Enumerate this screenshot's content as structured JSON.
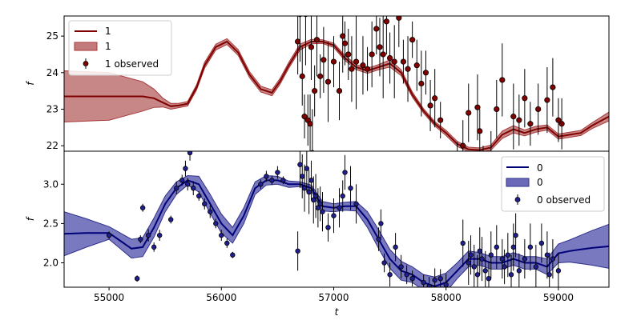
{
  "chart_data": [
    {
      "type": "line",
      "panel": "top",
      "xlim": [
        54600,
        59450
      ],
      "ylim": [
        21.85,
        25.55
      ],
      "yticks": [
        22,
        23,
        24,
        25
      ],
      "ylabel": "f",
      "xlabel": "",
      "grid": false,
      "legend_position": "top-left",
      "colors": {
        "line": "#800000",
        "band": "#c27a7a",
        "band_edge": "#a83a3a",
        "point": "#800000"
      },
      "legend": [
        "1",
        "1",
        "1 observed"
      ],
      "model": {
        "x": [
          54600,
          55000,
          55300,
          55400,
          55480,
          55550,
          55620,
          55700,
          55780,
          55850,
          55950,
          56050,
          56150,
          56250,
          56350,
          56450,
          56520,
          56600,
          56700,
          56800,
          56900,
          57000,
          57100,
          57200,
          57300,
          57400,
          57500,
          57600,
          57700,
          57800,
          57900,
          58000,
          58100,
          58200,
          58300,
          58400,
          58500,
          58600,
          58700,
          58800,
          58900,
          59000,
          59100,
          59200,
          59300,
          59450
        ],
        "y": [
          23.35,
          23.35,
          23.35,
          23.3,
          23.18,
          23.08,
          23.1,
          23.15,
          23.6,
          24.2,
          24.7,
          24.85,
          24.55,
          23.95,
          23.55,
          23.45,
          23.75,
          24.2,
          24.7,
          24.85,
          24.85,
          24.75,
          24.4,
          24.15,
          24.05,
          24.15,
          24.25,
          24.0,
          23.4,
          22.95,
          22.6,
          22.35,
          22.05,
          21.9,
          21.88,
          21.95,
          22.3,
          22.45,
          22.35,
          22.45,
          22.5,
          22.25,
          22.3,
          22.35,
          22.55,
          22.8
        ],
        "band_halfwidth": [
          0.7,
          0.65,
          0.4,
          0.25,
          0.12,
          0.08,
          0.06,
          0.06,
          0.07,
          0.08,
          0.08,
          0.08,
          0.08,
          0.08,
          0.08,
          0.08,
          0.08,
          0.08,
          0.08,
          0.06,
          0.05,
          0.06,
          0.07,
          0.07,
          0.07,
          0.07,
          0.1,
          0.08,
          0.07,
          0.06,
          0.06,
          0.07,
          0.07,
          0.06,
          0.06,
          0.07,
          0.1,
          0.1,
          0.08,
          0.08,
          0.07,
          0.07,
          0.07,
          0.07,
          0.08,
          0.12
        ]
      },
      "observed": {
        "name": "1 observed",
        "x": [
          56680,
          56700,
          56720,
          56740,
          56750,
          56770,
          56790,
          56800,
          56810,
          56830,
          56850,
          56880,
          56910,
          56950,
          57000,
          57050,
          57080,
          57100,
          57130,
          57160,
          57200,
          57260,
          57300,
          57340,
          57380,
          57410,
          57440,
          57470,
          57500,
          57540,
          57580,
          57620,
          57660,
          57700,
          57740,
          57780,
          57820,
          57860,
          57900,
          57950,
          58100,
          58150,
          58200,
          58280,
          58300,
          58330,
          58400,
          58450,
          58500,
          58550,
          58600,
          58650,
          58700,
          58750,
          58820,
          58900,
          58950,
          59000,
          59030
        ],
        "y": [
          24.85,
          25.6,
          23.9,
          22.8,
          25.6,
          22.7,
          22.6,
          24.7,
          21.8,
          23.5,
          24.9,
          23.9,
          24.35,
          23.75,
          24.3,
          23.5,
          25.0,
          24.8,
          24.5,
          24.1,
          24.3,
          24.2,
          24.1,
          24.5,
          25.2,
          24.7,
          24.5,
          25.4,
          24.4,
          24.3,
          25.5,
          24.3,
          24.1,
          24.9,
          24.2,
          23.7,
          24.0,
          23.1,
          23.3,
          22.7,
          21.5,
          22.0,
          22.9,
          23.05,
          22.4,
          21.5,
          21.7,
          23.0,
          23.8,
          21.2,
          22.8,
          22.7,
          23.3,
          22.6,
          23.0,
          23.25,
          23.6,
          22.7,
          22.6
        ],
        "yerr": [
          0.9,
          1.3,
          0.8,
          0.6,
          1.4,
          0.7,
          0.8,
          0.9,
          1.2,
          0.7,
          1.0,
          0.6,
          0.9,
          1.1,
          0.7,
          0.8,
          1.0,
          0.6,
          0.7,
          0.9,
          1.3,
          0.8,
          0.6,
          0.9,
          0.7,
          0.8,
          1.2,
          0.9,
          0.7,
          1.0,
          0.8,
          0.6,
          0.9,
          0.5,
          0.7,
          0.9,
          0.6,
          0.7,
          0.8,
          0.5,
          0.6,
          0.7,
          0.8,
          0.9,
          0.6,
          0.5,
          0.7,
          0.8,
          1.0,
          0.6,
          0.9,
          0.7,
          0.8,
          0.6,
          0.7,
          0.9,
          0.8,
          0.6,
          0.7
        ]
      }
    },
    {
      "type": "line",
      "panel": "bottom",
      "xlim": [
        54600,
        59450
      ],
      "ylim": [
        1.69,
        3.42
      ],
      "yticks": [
        2.0,
        2.5,
        3.0
      ],
      "xticks": [
        55000,
        56000,
        57000,
        58000,
        59000
      ],
      "xlabel": "t",
      "ylabel": "f",
      "grid": false,
      "legend_position": "top-right",
      "colors": {
        "line": "#00007a",
        "band": "#6a6ab8",
        "band_edge": "#30308c",
        "point": "#1f1f8f"
      },
      "legend": [
        "0",
        "0",
        "0 observed"
      ],
      "model": {
        "x": [
          54600,
          54800,
          55000,
          55100,
          55200,
          55300,
          55400,
          55500,
          55600,
          55700,
          55800,
          55900,
          56000,
          56100,
          56200,
          56300,
          56400,
          56500,
          56600,
          56700,
          56800,
          56900,
          57000,
          57100,
          57200,
          57300,
          57400,
          57500,
          57600,
          57700,
          57800,
          57900,
          58000,
          58100,
          58200,
          58300,
          58400,
          58500,
          58600,
          58700,
          58800,
          58900,
          59000,
          59100,
          59200,
          59300,
          59450
        ],
        "y": [
          2.37,
          2.38,
          2.38,
          2.28,
          2.18,
          2.2,
          2.45,
          2.75,
          2.95,
          3.05,
          3.0,
          2.75,
          2.5,
          2.35,
          2.6,
          2.95,
          3.05,
          3.05,
          3.0,
          3.0,
          2.95,
          2.72,
          2.7,
          2.72,
          2.72,
          2.55,
          2.3,
          2.05,
          1.9,
          1.85,
          1.75,
          1.7,
          1.75,
          1.9,
          2.05,
          2.05,
          2.0,
          2.0,
          2.05,
          2.0,
          2.0,
          1.95,
          2.12,
          2.15,
          2.17,
          2.19,
          2.21
        ],
        "band_halfwidth": [
          0.28,
          0.18,
          0.08,
          0.1,
          0.12,
          0.12,
          0.12,
          0.1,
          0.08,
          0.06,
          0.1,
          0.12,
          0.12,
          0.1,
          0.1,
          0.08,
          0.06,
          0.05,
          0.04,
          0.03,
          0.04,
          0.06,
          0.05,
          0.05,
          0.06,
          0.1,
          0.12,
          0.12,
          0.12,
          0.1,
          0.1,
          0.12,
          0.12,
          0.1,
          0.1,
          0.08,
          0.08,
          0.08,
          0.08,
          0.08,
          0.08,
          0.1,
          0.12,
          0.14,
          0.18,
          0.22,
          0.28
        ]
      },
      "observed": {
        "name": "0 observed",
        "x": [
          55000,
          55250,
          55280,
          55300,
          55350,
          55400,
          55450,
          55550,
          55600,
          55650,
          55680,
          55700,
          55720,
          55750,
          55800,
          55850,
          55900,
          55950,
          56000,
          56050,
          56100,
          56350,
          56400,
          56450,
          56500,
          56550,
          56680,
          56700,
          56720,
          56740,
          56760,
          56780,
          56800,
          56820,
          56840,
          56860,
          56880,
          56900,
          56950,
          57000,
          57050,
          57080,
          57100,
          57150,
          57200,
          57400,
          57420,
          57450,
          57500,
          57550,
          57600,
          57650,
          57700,
          57800,
          57850,
          57900,
          57950,
          58000,
          58150,
          58200,
          58220,
          58250,
          58280,
          58300,
          58320,
          58350,
          58380,
          58400,
          58450,
          58500,
          58520,
          58550,
          58580,
          58600,
          58620,
          58650,
          58700,
          58750,
          58800,
          58850,
          58900,
          58920,
          58950,
          59000
        ],
        "y": [
          2.35,
          1.8,
          2.3,
          2.7,
          2.35,
          2.2,
          2.35,
          2.55,
          2.95,
          3.05,
          3.2,
          3.0,
          3.4,
          2.95,
          2.85,
          2.75,
          2.65,
          2.5,
          2.35,
          2.25,
          2.1,
          3.0,
          3.1,
          3.05,
          3.15,
          3.05,
          2.15,
          3.25,
          3.1,
          2.95,
          3.2,
          2.9,
          3.05,
          2.8,
          2.85,
          2.7,
          2.75,
          2.65,
          2.45,
          2.6,
          2.7,
          2.85,
          3.15,
          2.95,
          2.75,
          2.3,
          2.5,
          2.0,
          1.85,
          2.2,
          1.95,
          1.85,
          1.8,
          1.75,
          1.7,
          1.78,
          1.8,
          1.72,
          2.25,
          2.0,
          2.1,
          1.95,
          1.85,
          2.15,
          2.05,
          1.9,
          1.8,
          2.1,
          2.2,
          2.05,
          1.95,
          2.1,
          1.85,
          2.2,
          2.35,
          1.9,
          2.05,
          2.2,
          1.95,
          2.25,
          2.1,
          1.85,
          2.05,
          1.9
        ],
        "yerr": [
          0.05,
          0.04,
          0.05,
          0.05,
          0.08,
          0.06,
          0.07,
          0.05,
          0.08,
          0.07,
          0.1,
          0.08,
          0.1,
          0.09,
          0.06,
          0.07,
          0.08,
          0.06,
          0.07,
          0.06,
          0.04,
          0.06,
          0.07,
          0.06,
          0.08,
          0.05,
          0.25,
          0.3,
          0.28,
          0.3,
          0.3,
          0.28,
          0.25,
          0.3,
          0.28,
          0.25,
          0.22,
          0.25,
          0.18,
          0.22,
          0.25,
          0.2,
          0.22,
          0.28,
          0.25,
          0.15,
          0.18,
          0.12,
          0.15,
          0.18,
          0.15,
          0.12,
          0.1,
          0.1,
          0.12,
          0.15,
          0.12,
          0.14,
          0.3,
          0.28,
          0.25,
          0.28,
          0.25,
          0.3,
          0.28,
          0.25,
          0.22,
          0.3,
          0.28,
          0.25,
          0.22,
          0.28,
          0.25,
          0.3,
          0.28,
          0.22,
          0.25,
          0.3,
          0.28,
          0.25,
          0.3,
          0.28,
          0.25,
          0.22
        ]
      }
    }
  ]
}
